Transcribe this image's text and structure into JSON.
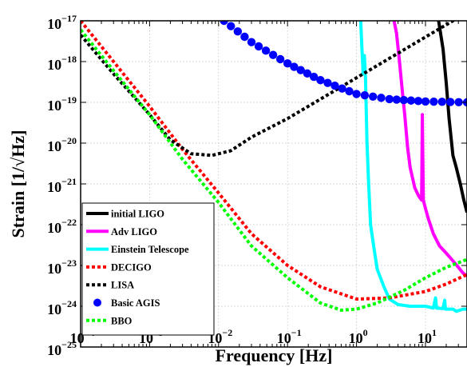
{
  "chart_data": {
    "type": "line",
    "xlabel": "Frequency [Hz]",
    "ylabel": "Strain [1/√Hz]",
    "xscale": "log",
    "yscale": "log",
    "xlim": [
      0.0001,
      40
    ],
    "ylim": [
      1e-25,
      1e-17
    ],
    "grid": true,
    "legend_position": "bottom-left",
    "x_tick_exponents": [
      -4,
      -3,
      -2,
      -1,
      0,
      1
    ],
    "y_tick_exponents": [
      -25,
      -24,
      -23,
      -22,
      -21,
      -20,
      -19,
      -18,
      -17
    ],
    "tick_base": "10",
    "series": [
      {
        "name": "initial LIGO",
        "color": "#000000",
        "style": "solid",
        "points": [
          [
            15.5,
            1e-17
          ],
          [
            18,
            2e-18
          ],
          [
            20,
            3e-19
          ],
          [
            22,
            4e-20
          ],
          [
            25,
            5e-21
          ],
          [
            28,
            2.5e-21
          ],
          [
            32,
            1e-21
          ],
          [
            36,
            4e-22
          ],
          [
            40,
            2e-22
          ]
        ]
      },
      {
        "name": "Adv LIGO",
        "color": "#ff00ff",
        "style": "solid",
        "points": [
          [
            3.5,
            1e-17
          ],
          [
            3.8,
            5e-18
          ],
          [
            4.2,
            1e-18
          ],
          [
            4.6,
            2e-19
          ],
          [
            5,
            5e-20
          ],
          [
            5.5,
            8e-21
          ],
          [
            6,
            2.5e-21
          ],
          [
            7,
            8e-22
          ],
          [
            8,
            5e-22
          ],
          [
            8.8,
            4e-22
          ],
          [
            9,
            5e-20
          ],
          [
            9.3,
            4e-22
          ],
          [
            10,
            2.5e-22
          ],
          [
            11,
            1.4e-22
          ],
          [
            13,
            6e-23
          ],
          [
            16,
            3e-23
          ],
          [
            20,
            2e-23
          ],
          [
            25,
            1.3e-23
          ],
          [
            30,
            9e-24
          ],
          [
            35,
            6.5e-24
          ],
          [
            40,
            5.5e-24
          ]
        ]
      },
      {
        "name": "Einstein Telescope",
        "color": "#00ffff",
        "style": "solid",
        "points": [
          [
            1.15,
            1e-17
          ],
          [
            1.2,
            2e-18
          ],
          [
            1.25,
            5e-19
          ],
          [
            1.3,
            1.4e-18
          ],
          [
            1.35,
            4e-19
          ],
          [
            1.42,
            1e-20
          ],
          [
            1.5,
            1e-21
          ],
          [
            1.6,
            1e-22
          ],
          [
            1.8,
            2.5e-23
          ],
          [
            2,
            8e-24
          ],
          [
            2.5,
            3e-24
          ],
          [
            3,
            1.5e-24
          ],
          [
            4,
            1.1e-24
          ],
          [
            6,
            1e-24
          ],
          [
            10,
            1e-24
          ],
          [
            13,
            9e-25
          ],
          [
            14,
            1.6e-24
          ],
          [
            14.5,
            9e-25
          ],
          [
            18,
            8.8e-25
          ],
          [
            19,
            1.4e-24
          ],
          [
            19.5,
            8.5e-25
          ],
          [
            25,
            8.5e-25
          ],
          [
            28,
            7.5e-25
          ],
          [
            35,
            8.5e-25
          ],
          [
            40,
            8.5e-25
          ]
        ]
      },
      {
        "name": "DECIGO",
        "color": "#ff0000",
        "style": "dotted",
        "points": [
          [
            0.0001,
            1e-17
          ],
          [
            0.0003,
            1e-18
          ],
          [
            0.001,
            8e-20
          ],
          [
            0.003,
            7e-21
          ],
          [
            0.01,
            6e-22
          ],
          [
            0.03,
            6e-23
          ],
          [
            0.1,
            1e-23
          ],
          [
            0.3,
            3e-24
          ],
          [
            1,
            1.5e-24
          ],
          [
            3,
            1.6e-24
          ],
          [
            10,
            2.3e-24
          ],
          [
            20,
            3.5e-24
          ],
          [
            40,
            6e-24
          ]
        ]
      },
      {
        "name": "LISA",
        "color": "#000000",
        "style": "dotted",
        "points": [
          [
            0.0001,
            4.5e-18
          ],
          [
            0.0003,
            5e-19
          ],
          [
            0.001,
            5e-20
          ],
          [
            0.002,
            1.2e-20
          ],
          [
            0.004,
            5.5e-21
          ],
          [
            0.008,
            5e-21
          ],
          [
            0.015,
            6.5e-21
          ],
          [
            0.03,
            1.4e-20
          ],
          [
            0.1,
            4e-20
          ],
          [
            0.3,
            1.2e-19
          ],
          [
            1,
            4e-19
          ],
          [
            3,
            1.2e-18
          ],
          [
            10,
            4e-18
          ],
          [
            40,
            1.6e-17
          ]
        ]
      },
      {
        "name": "Basic AGIS",
        "color": "#0000ff",
        "style": "dots",
        "points": [
          [
            0.012,
            1e-17
          ],
          [
            0.03,
            3e-18
          ],
          [
            0.1,
            9e-19
          ],
          [
            0.3,
            3.5e-19
          ],
          [
            1,
            1.6e-19
          ],
          [
            3,
            1.2e-19
          ],
          [
            10,
            1.05e-19
          ],
          [
            40,
            1e-19
          ]
        ]
      },
      {
        "name": "BBO",
        "color": "#00ff00",
        "style": "dotted",
        "points": [
          [
            0.0001,
            6e-18
          ],
          [
            0.0003,
            6e-19
          ],
          [
            0.001,
            5e-20
          ],
          [
            0.003,
            4e-21
          ],
          [
            0.01,
            3.5e-22
          ],
          [
            0.03,
            3e-23
          ],
          [
            0.1,
            5e-24
          ],
          [
            0.3,
            1.2e-24
          ],
          [
            0.6,
            8e-25
          ],
          [
            1,
            8.5e-25
          ],
          [
            2,
            1.2e-24
          ],
          [
            5,
            2.5e-24
          ],
          [
            10,
            5e-24
          ],
          [
            20,
            9e-24
          ],
          [
            40,
            1.4e-23
          ]
        ]
      }
    ]
  }
}
